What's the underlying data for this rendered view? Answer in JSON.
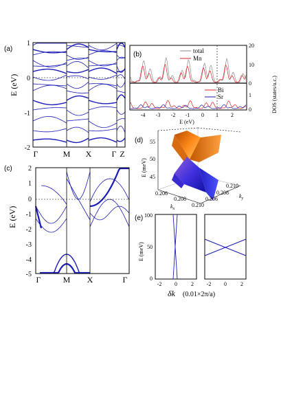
{
  "colors": {
    "band": "#1a1ab8",
    "total": "#8a8a8a",
    "mn": "#e02020",
    "bi": "#e02020",
    "sr": "#1a1ab8"
  },
  "panel_a": {
    "label": "(a)",
    "ylabel": "E (eV)",
    "yticks": [
      "1",
      "0",
      "-1",
      "-2"
    ],
    "xticks": [
      "Γ",
      "M",
      "X",
      "Γ",
      "Z"
    ]
  },
  "panel_b": {
    "label": "(b)",
    "xlabel": "E (eV)",
    "ylabel": "DOS (states/u.c.)",
    "xticks": [
      "-4",
      "-3",
      "-2",
      "-1",
      "0",
      "1",
      "2"
    ],
    "yticks_top": [
      "20",
      "10",
      "0"
    ],
    "yticks_bottom": [
      "1",
      "0"
    ],
    "legend_top": [
      "total",
      "Mn"
    ],
    "legend_bottom": [
      "Bi",
      "Sr"
    ]
  },
  "panel_c": {
    "label": "(c)",
    "ylabel": "E (eV)",
    "yticks": [
      "2",
      "1",
      "0",
      "-1",
      "-2",
      "-3",
      "-4",
      "-5"
    ],
    "xticks": [
      "Γ",
      "M",
      "X",
      "Γ"
    ]
  },
  "panel_d": {
    "label": "(d)",
    "zlabel": "E (meV)",
    "zticks": [
      "55",
      "50",
      "45"
    ],
    "kx_ticks": [
      "0.206",
      "0.208",
      "0.210"
    ],
    "ky_ticks": [
      "0.210",
      "0.208",
      "0.206"
    ],
    "kx_label": "k",
    "kx_sub": "x",
    "ky_label": "k",
    "ky_sub": "y"
  },
  "panel_e": {
    "label": "(e)",
    "ylabel": "E (meV)",
    "yticks": [
      "100",
      "50",
      "0"
    ],
    "xticks_left": [
      "-2",
      "0",
      "2"
    ],
    "xticks_right": [
      "-2",
      "0",
      "2"
    ],
    "xlabel_delta": "δk",
    "xlabel_rest": "(0.01×2π/a)"
  }
}
